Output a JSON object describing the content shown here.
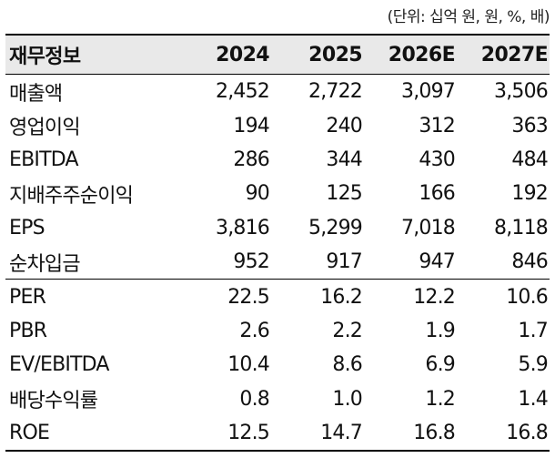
{
  "unit_note": "(단위: 십억 원, 원, %, 배)",
  "header": {
    "label": "재무정보",
    "years": [
      "2024",
      "2025",
      "2026E",
      "2027E"
    ]
  },
  "rows": [
    {
      "label": "매출액",
      "values": [
        "2,452",
        "2,722",
        "3,097",
        "3,506"
      ]
    },
    {
      "label": "영업이익",
      "values": [
        "194",
        "240",
        "312",
        "363"
      ]
    },
    {
      "label": "EBITDA",
      "values": [
        "286",
        "344",
        "430",
        "484"
      ]
    },
    {
      "label": "지배주주순이익",
      "values": [
        "90",
        "125",
        "166",
        "192"
      ]
    },
    {
      "label": "EPS",
      "values": [
        "3,816",
        "5,299",
        "7,018",
        "8,118"
      ]
    },
    {
      "label": "순차입금",
      "values": [
        "952",
        "917",
        "947",
        "846"
      ]
    },
    {
      "label": "PER",
      "values": [
        "22.5",
        "16.2",
        "12.2",
        "10.6"
      ]
    },
    {
      "label": "PBR",
      "values": [
        "2.6",
        "2.2",
        "1.9",
        "1.7"
      ]
    },
    {
      "label": "EV/EBITDA",
      "values": [
        "10.4",
        "8.6",
        "6.9",
        "5.9"
      ]
    },
    {
      "label": "배당수익률",
      "values": [
        "0.8",
        "1.0",
        "1.2",
        "1.4"
      ]
    },
    {
      "label": "ROE",
      "values": [
        "12.5",
        "14.7",
        "16.8",
        "16.8"
      ]
    }
  ]
}
